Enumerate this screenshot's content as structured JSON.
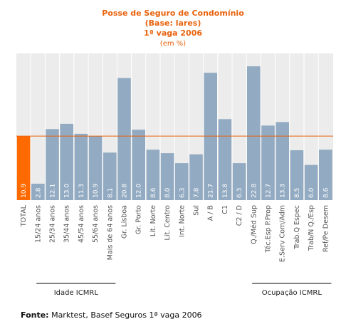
{
  "colors": {
    "title": "#e8620c",
    "bar": "#93abc2",
    "highlight_bar": "#ff6a00",
    "reference_line": "#e8620c",
    "plot_background": "#ececec",
    "grid": "#ffffff"
  },
  "chart_data": {
    "type": "bar",
    "title_lines": [
      "Posse de Seguro de Condomínio",
      "(Base: lares)",
      "1ª vaga 2006"
    ],
    "subtitle": "(em %)",
    "xlabel": "",
    "ylabel": "",
    "ylim": [
      0,
      25
    ],
    "grid": true,
    "categories": [
      "TOTAL",
      "15/24 anos",
      "25/34 anos",
      "35/44 anos",
      "45/54 anos",
      "55/64 anos",
      "Mais de 64 anos",
      "Gr. Lisboa",
      "Gr. Porto",
      "Lit. Norte",
      "Lit. Centro",
      "Int. Norte",
      "Sul",
      "A / B",
      "C1",
      "C2 / D",
      "Q./Méd Sup",
      "Téc.Esp P.Prop",
      "E.Serv Com/Adm",
      "Trab.Q Espec",
      "Trab/N Q./Esp",
      "Ref/Pe Desem"
    ],
    "values": [
      10.9,
      2.8,
      12.1,
      13.0,
      11.3,
      10.9,
      8.1,
      20.8,
      12.0,
      8.6,
      8.0,
      6.3,
      7.8,
      21.7,
      13.8,
      6.3,
      22.8,
      12.7,
      13.3,
      8.5,
      6.0,
      8.6
    ],
    "value_labels": [
      "10.9",
      "2.8",
      "12.1",
      "13.0",
      "11.3",
      "10.9",
      "8.1",
      "20.8",
      "12.0",
      "8.6",
      "8.0",
      "6.3",
      "7.8",
      "21.7",
      "13.8",
      "6.3",
      "22.8",
      "12.7",
      "13.3",
      "8.5",
      "6.0",
      "8.6"
    ],
    "highlight_index": 0,
    "reference_value": 10.9,
    "groups": [
      {
        "label": "Idade ICMRL",
        "from": 1,
        "to": 6
      },
      {
        "label": "Ocupação ICMRL",
        "from": 16,
        "to": 21
      }
    ]
  },
  "source": {
    "label": "Fonte:",
    "text": "Marktest, Basef Seguros 1ª vaga 2006"
  }
}
